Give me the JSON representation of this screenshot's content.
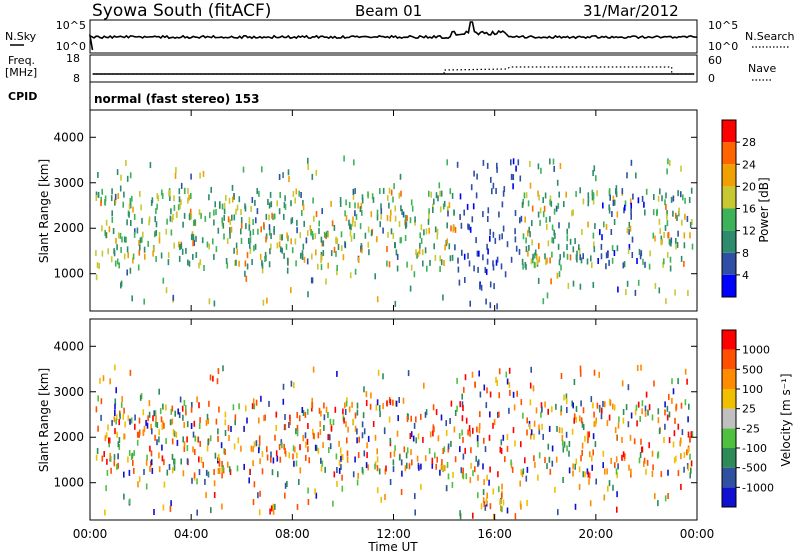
{
  "header": {
    "station": "Syowa South (fitACF)",
    "beam": "Beam 01",
    "date": "31/Mar/2012"
  },
  "noise_panel": {
    "left_label": "N.Sky",
    "right_label": "N.Search",
    "left_ticks": [
      "10^5",
      "10^0"
    ],
    "right_ticks": [
      "10^5",
      "10^0"
    ]
  },
  "freq_panel": {
    "left_label_top": "Freq.",
    "left_label_bottom": "[MHz]",
    "right_label": "Nave",
    "left_ticks": [
      "18",
      "8"
    ],
    "right_ticks": [
      "60",
      "0"
    ]
  },
  "cpid": {
    "label": "CPID",
    "value": "normal (fast stereo) 153"
  },
  "chart_data": [
    {
      "type": "heatmap",
      "name": "power",
      "ylabel": "Slant Range [km]",
      "yticks": [
        "1000",
        "2000",
        "3000",
        "4000"
      ],
      "ylim": [
        180,
        4600
      ],
      "colorbar": {
        "label": "Power [dB]",
        "ticks": [
          "4",
          "8",
          "12",
          "16",
          "20",
          "24",
          "28"
        ],
        "colors": [
          "#0000ff",
          "#2e4fa3",
          "#2e8b6b",
          "#3cb35a",
          "#c8c832",
          "#f0a000",
          "#ff6400",
          "#ff0000"
        ]
      }
    },
    {
      "type": "heatmap",
      "name": "velocity",
      "ylabel": "Slant Range [km]",
      "yticks": [
        "1000",
        "2000",
        "3000",
        "4000"
      ],
      "ylim": [
        180,
        4600
      ],
      "colorbar": {
        "label": "Velocity [m s⁻¹]",
        "ticks": [
          "1000",
          "500",
          "100",
          "25",
          "-25",
          "-100",
          "-500",
          "-1000"
        ],
        "colors": [
          "#1010d0",
          "#3050a0",
          "#2e8b57",
          "#50c040",
          "#c0c0c0",
          "#f0c000",
          "#ff8c00",
          "#ff5000",
          "#ff0000"
        ]
      }
    }
  ],
  "x_axis": {
    "label": "Time UT",
    "ticks": [
      "00:00",
      "04:00",
      "08:00",
      "12:00",
      "16:00",
      "20:00",
      "00:00"
    ],
    "range_hours": [
      0,
      24
    ]
  }
}
